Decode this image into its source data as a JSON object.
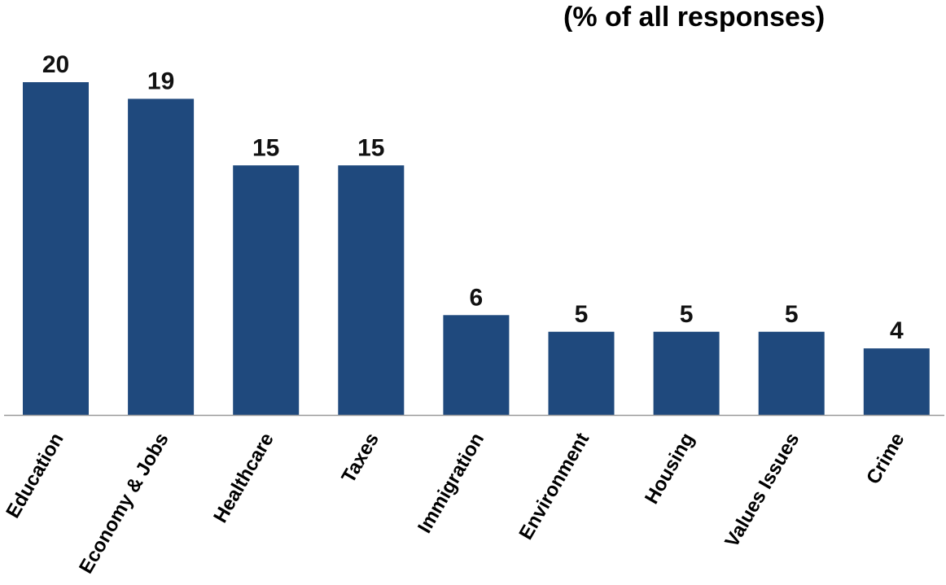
{
  "chart_data": {
    "type": "bar",
    "subtitle": "(% of all responses)",
    "categories": [
      "Education",
      "Economy & Jobs",
      "Healthcare",
      "Taxes",
      "Immigration",
      "Environment",
      "Housing",
      "Values Issues",
      "Crime"
    ],
    "values": [
      20,
      19,
      15,
      15,
      6,
      5,
      5,
      5,
      4
    ],
    "ylim": [
      0,
      20
    ],
    "grid": false,
    "bar_color": "#1f497d",
    "axis_color": "#999999"
  }
}
